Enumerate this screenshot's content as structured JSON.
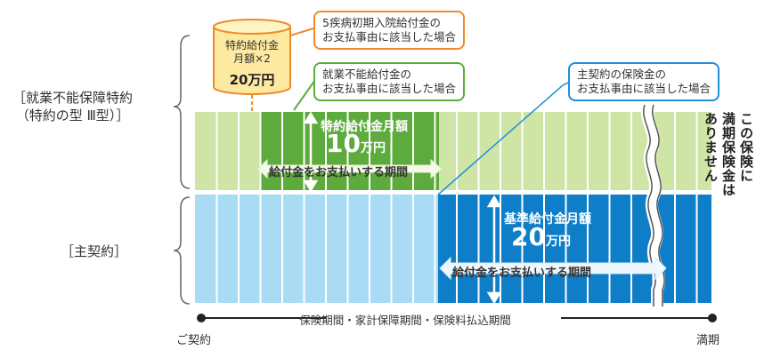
{
  "rider_label": "［就業不能保障特約（特約の型 Ⅲ型）］",
  "rider_label_line1": "就業不能保障特約",
  "rider_label_line2": "（特約の型 Ⅲ型）",
  "main_label": "［主契約］",
  "callouts": {
    "cancer_hospital_line1": "5疾病初期入院給付金の",
    "cancer_hospital_line2": "お支払事由に該当した場合",
    "disability_line1": "就業不能給付金の",
    "disability_line2": "お支払事由に該当した場合",
    "main_line1": "主契約の保険金の",
    "main_line2": "お支払事由に該当した場合"
  },
  "initial_benefit": {
    "line1": "特約給付金",
    "line2": "月額×2",
    "amount": "20万円"
  },
  "rider_benefit": {
    "title": "特約給付金月額",
    "value": "10",
    "unit": "万円",
    "period": "給付金をお支払いする期間"
  },
  "main_benefit": {
    "title": "基準給付金月額",
    "value": "20",
    "unit": "万円",
    "period": "給付金をお支払いする期間"
  },
  "no_maturity_col1": "この保険に",
  "no_maturity_col2": "満期保険金は",
  "no_maturity_col3": "ありません",
  "timeline": {
    "label": "保険期間・家計保障期間・保険料払込期間",
    "start": "ご契約",
    "end": "満期"
  },
  "colors": {
    "rider_light": "#cfe5a6",
    "rider_active": "#5dab3c",
    "main_light": "#a9dbf5",
    "main_active": "#0f7ec8",
    "callout_orange": "#f08a2c",
    "cylinder_fill": "#fde9a0"
  }
}
